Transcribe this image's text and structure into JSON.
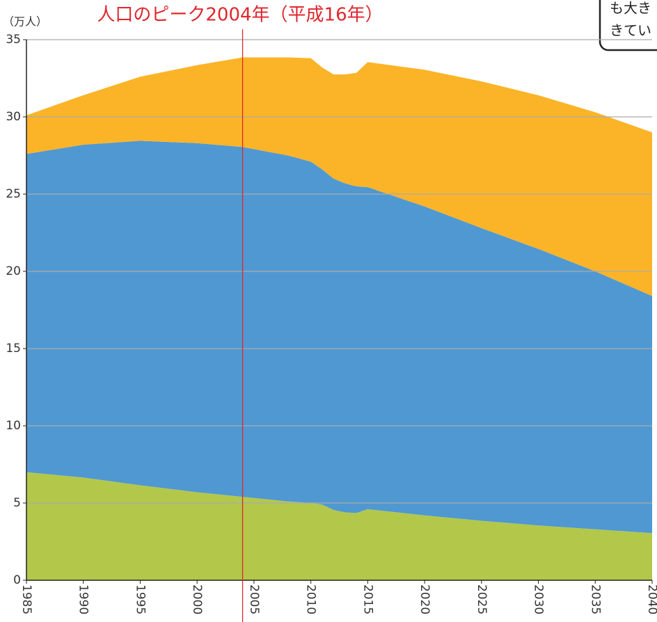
{
  "chart_data": {
    "type": "stacked_area",
    "title": "人口のピーク2004年（平成16年）",
    "y_axis_label": "（万人）",
    "callout_lines": [
      "も大き",
      "きてい"
    ],
    "peak_line_x": 2004,
    "x": [
      1985,
      1990,
      1995,
      2000,
      2004,
      2008,
      2010,
      2011,
      2012,
      2013,
      2014,
      2015,
      2020,
      2025,
      2030,
      2035,
      2040
    ],
    "series": [
      {
        "color": "#b3c84a",
        "values": [
          7.0,
          6.65,
          6.15,
          5.7,
          5.4,
          5.1,
          5.0,
          4.9,
          4.55,
          4.4,
          4.35,
          4.6,
          4.2,
          3.85,
          3.55,
          3.3,
          3.05
        ]
      },
      {
        "color": "#5098d2",
        "values": [
          20.6,
          21.55,
          22.3,
          22.6,
          22.65,
          22.4,
          22.1,
          21.7,
          21.45,
          21.3,
          21.15,
          20.85,
          20.0,
          18.95,
          17.9,
          16.7,
          15.35
        ]
      },
      {
        "color": "#fbb428",
        "values": [
          2.5,
          3.2,
          4.15,
          5.05,
          5.8,
          6.35,
          6.7,
          6.6,
          6.75,
          7.05,
          7.35,
          8.1,
          8.85,
          9.5,
          9.95,
          10.3,
          10.6
        ]
      }
    ],
    "xlim": [
      1985,
      2040
    ],
    "xticks": [
      1985,
      1990,
      1995,
      2000,
      2005,
      2010,
      2015,
      2020,
      2025,
      2030,
      2035,
      2040
    ],
    "ylim": [
      0,
      35
    ],
    "yticks": [
      0,
      5,
      10,
      15,
      20,
      25,
      30,
      35
    ],
    "grid": true
  }
}
